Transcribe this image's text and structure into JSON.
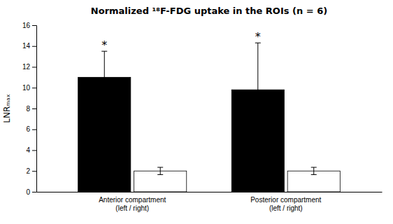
{
  "chart_data": {
    "type": "bar",
    "title": "Normalized ¹⁸F-FDG uptake in the ROIs (n = 6)",
    "ylabel": "LNRₘₐₓ",
    "categories": [
      "Anterior compartment\n(left / right)",
      "Posterior compartment\n(left / right)"
    ],
    "series": [
      {
        "color": "#000000",
        "values": [
          11.0,
          9.8
        ],
        "errors": [
          2.5,
          4.5
        ]
      },
      {
        "color": "#ffffff",
        "values": [
          2.0,
          2.0
        ],
        "errors": [
          0.35,
          0.35
        ]
      }
    ],
    "ylim": [
      0,
      16
    ],
    "yticks": [
      0,
      2,
      4,
      6,
      8,
      10,
      12,
      14,
      16
    ],
    "annotations": [
      "*",
      "*"
    ]
  }
}
